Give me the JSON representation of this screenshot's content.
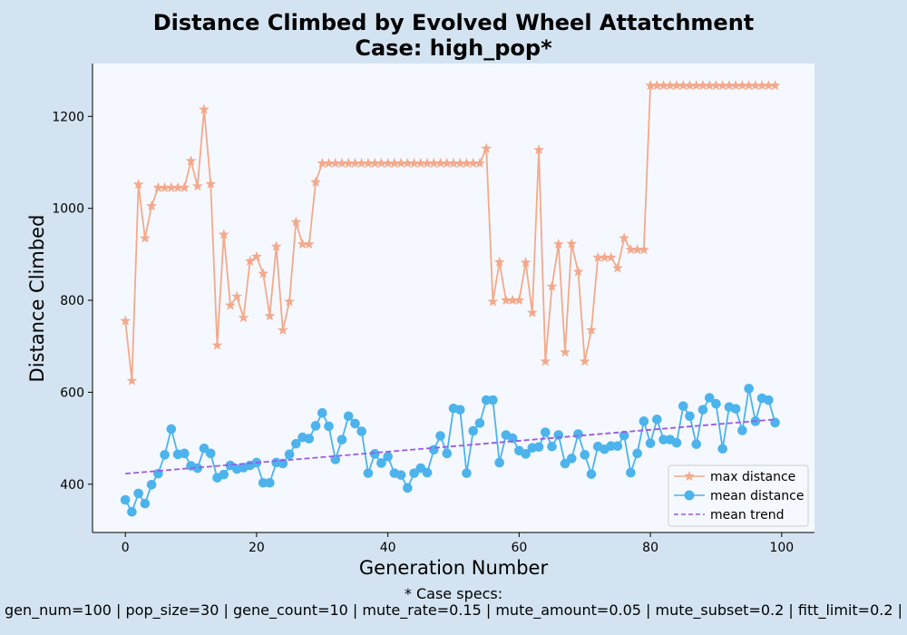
{
  "title_line1": "Distance Climbed by Evolved Wheel Attatchment",
  "title_line2": "Case: high_pop*",
  "footer_line1": "* Case specs:",
  "footer_line2": "gen_num=100 | pop_size=30 | gene_count=10 | mute_rate=0.15 | mute_amount=0.05 | mute_subset=0.2 | fitt_limit=0.2 |",
  "colors": {
    "max": "#f4a98c",
    "mean": "#4cb3ec",
    "trend": "#9b59e8",
    "plot_bg": "#f5f9ff",
    "page_bg": "#d3e3f1"
  },
  "chart_data": {
    "type": "line",
    "xlabel": "Generation Number",
    "ylabel": "Distance Climbed",
    "xlim": [
      -5,
      105
    ],
    "ylim": [
      295,
      1315
    ],
    "xticks": [
      0,
      20,
      40,
      60,
      80,
      100
    ],
    "yticks": [
      400,
      600,
      800,
      1000,
      1200
    ],
    "grid": false,
    "legend_position": "lower-right",
    "series": [
      {
        "name": "max distance",
        "marker": "star",
        "x": [
          0,
          1,
          2,
          3,
          4,
          5,
          6,
          7,
          8,
          9,
          10,
          11,
          12,
          13,
          14,
          15,
          16,
          17,
          18,
          19,
          20,
          21,
          22,
          23,
          24,
          25,
          26,
          27,
          28,
          29,
          30,
          31,
          32,
          33,
          34,
          35,
          36,
          37,
          38,
          39,
          40,
          41,
          42,
          43,
          44,
          45,
          46,
          47,
          48,
          49,
          50,
          51,
          52,
          53,
          54,
          55,
          56,
          57,
          58,
          59,
          60,
          61,
          62,
          63,
          64,
          65,
          66,
          67,
          68,
          69,
          70,
          71,
          72,
          73,
          74,
          75,
          76,
          77,
          78,
          79,
          80,
          81,
          82,
          83,
          84,
          85,
          86,
          87,
          88,
          89,
          90,
          91,
          92,
          93,
          94,
          95,
          96,
          97,
          98,
          99
        ],
        "y": [
          755,
          625,
          1052,
          935,
          1005,
          1045,
          1045,
          1045,
          1045,
          1045,
          1103,
          1048,
          1215,
          1053,
          702,
          943,
          789,
          808,
          762,
          885,
          895,
          858,
          766,
          917,
          735,
          797,
          970,
          922,
          922,
          1057,
          1098,
          1098,
          1098,
          1098,
          1098,
          1098,
          1098,
          1098,
          1098,
          1098,
          1098,
          1098,
          1098,
          1098,
          1098,
          1098,
          1098,
          1098,
          1098,
          1098,
          1098,
          1098,
          1098,
          1098,
          1098,
          1130,
          797,
          883,
          800,
          800,
          800,
          882,
          773,
          1127,
          667,
          830,
          922,
          687,
          923,
          862,
          667,
          735,
          893,
          893,
          893,
          870,
          935,
          910,
          910,
          910,
          1267,
          1267,
          1267,
          1267,
          1267,
          1267,
          1267,
          1267,
          1267,
          1267,
          1267,
          1267,
          1267,
          1267,
          1267,
          1267,
          1267,
          1267,
          1267,
          1267
        ]
      },
      {
        "name": "mean distance",
        "marker": "circle",
        "x": [
          0,
          1,
          2,
          3,
          4,
          5,
          6,
          7,
          8,
          9,
          10,
          11,
          12,
          13,
          14,
          15,
          16,
          17,
          18,
          19,
          20,
          21,
          22,
          23,
          24,
          25,
          26,
          27,
          28,
          29,
          30,
          31,
          32,
          33,
          34,
          35,
          36,
          37,
          38,
          39,
          40,
          41,
          42,
          43,
          44,
          45,
          46,
          47,
          48,
          49,
          50,
          51,
          52,
          53,
          54,
          55,
          56,
          57,
          58,
          59,
          60,
          61,
          62,
          63,
          64,
          65,
          66,
          67,
          68,
          69,
          70,
          71,
          72,
          73,
          74,
          75,
          76,
          77,
          78,
          79,
          80,
          81,
          82,
          83,
          84,
          85,
          86,
          87,
          88,
          89,
          90,
          91,
          92,
          93,
          94,
          95,
          96,
          97,
          98,
          99
        ],
        "y": [
          366,
          340,
          380,
          358,
          399,
          423,
          464,
          520,
          465,
          467,
          440,
          435,
          478,
          467,
          414,
          421,
          441,
          433,
          436,
          441,
          447,
          403,
          403,
          447,
          445,
          465,
          488,
          502,
          499,
          527,
          555,
          526,
          454,
          497,
          548,
          532,
          515,
          424,
          466,
          446,
          460,
          424,
          420,
          392,
          424,
          435,
          425,
          475,
          505,
          467,
          565,
          562,
          424,
          516,
          533,
          583,
          583,
          447,
          507,
          500,
          473,
          466,
          479,
          481,
          513,
          482,
          507,
          445,
          456,
          509,
          464,
          422,
          482,
          476,
          483,
          483,
          506,
          425,
          467,
          537,
          489,
          541,
          497,
          497,
          490,
          570,
          548,
          487,
          562,
          588,
          575,
          477,
          568,
          564,
          517,
          608,
          537,
          587,
          583,
          534
        ]
      },
      {
        "name": "mean trend",
        "line_style": "dashed",
        "x": [
          0,
          99
        ],
        "y": [
          423,
          541
        ]
      }
    ]
  }
}
